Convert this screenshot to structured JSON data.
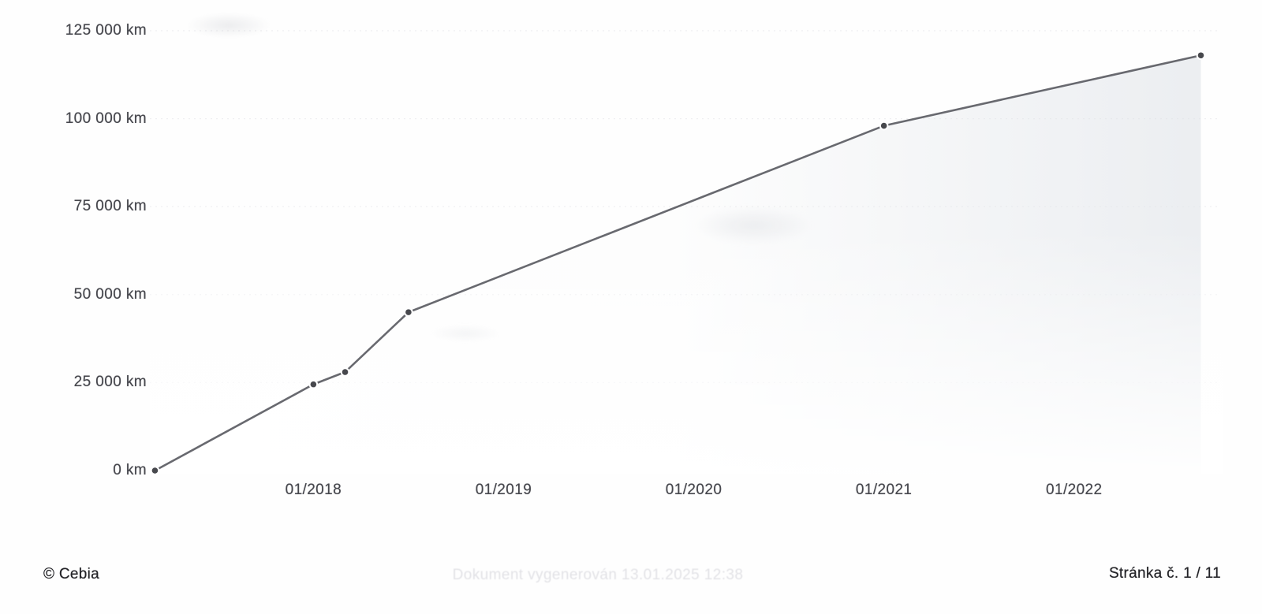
{
  "chart_data": {
    "type": "line",
    "title": "",
    "unit": "km",
    "points": [
      {
        "date": "03/2017",
        "km": 0
      },
      {
        "date": "01/2018",
        "km": 24500
      },
      {
        "date": "03/2018",
        "km": 28000
      },
      {
        "date": "07/2018",
        "km": 45000
      },
      {
        "date": "01/2021",
        "km": 98000
      },
      {
        "date": "09/2022",
        "km": 118000
      }
    ],
    "y_ticks": [
      {
        "km": 0,
        "label": "0 km"
      },
      {
        "km": 25000,
        "label": "25 000 km"
      },
      {
        "km": 50000,
        "label": "50 000 km"
      },
      {
        "km": 75000,
        "label": "75 000 km"
      },
      {
        "km": 100000,
        "label": "100 000 km"
      },
      {
        "km": 125000,
        "label": "125 000 km"
      }
    ],
    "x_ticks": [
      {
        "date": "01/2018",
        "label": "01/2018"
      },
      {
        "date": "01/2019",
        "label": "01/2019"
      },
      {
        "date": "01/2020",
        "label": "01/2020"
      },
      {
        "date": "01/2021",
        "label": "01/2021"
      },
      {
        "date": "01/2022",
        "label": "01/2022"
      }
    ],
    "xlim_decimal_years": [
      2017.14,
      2022.76
    ],
    "ylim": [
      0,
      125000
    ],
    "grid": "faint-horizontal",
    "legend": "none",
    "line_color": "#5d5e64",
    "marker_color": "#47484d",
    "grid_color": "#e3e4e8",
    "area_tint": "#dfe3e8"
  },
  "footer": {
    "copyright": "© Cebia",
    "generated_note": "Dokument vygenerován 13.01.2025 12:38",
    "page_label": "Stránka č. 1 / 11"
  }
}
